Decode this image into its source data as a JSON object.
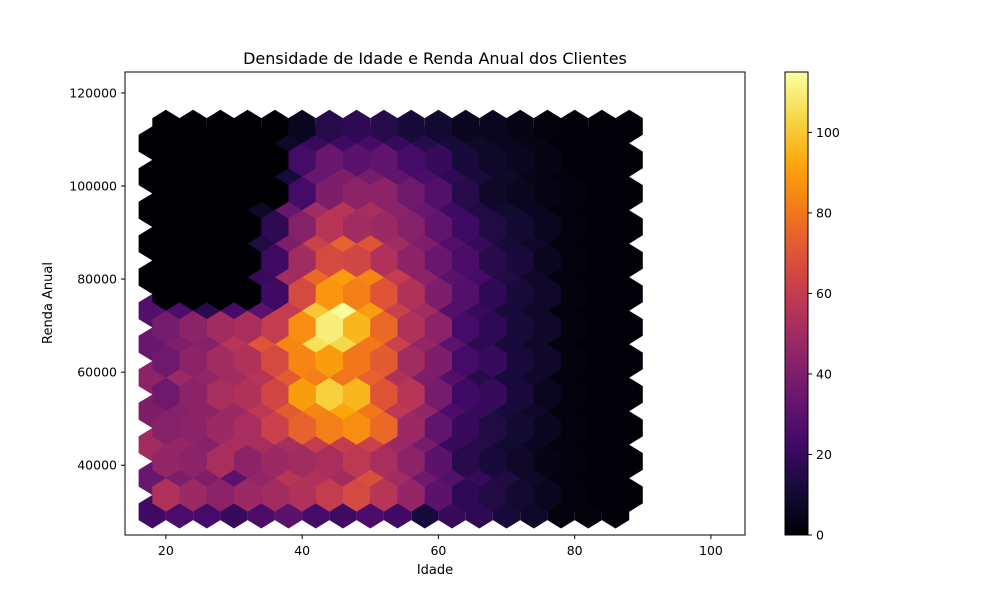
{
  "chart_data": {
    "type": "hexbin",
    "title": "Densidade de Idade e Renda Anual dos Clientes",
    "xlabel": "Idade",
    "ylabel": "Renda Anual",
    "xlim": [
      14,
      105
    ],
    "ylim": [
      25000,
      124500
    ],
    "x_ticks": [
      20,
      40,
      60,
      80,
      100
    ],
    "y_ticks": [
      40000,
      60000,
      80000,
      100000,
      120000
    ],
    "x_tick_labels": [
      "20",
      "40",
      "60",
      "80",
      "100"
    ],
    "y_tick_labels": [
      "40000",
      "60000",
      "80000",
      "100000",
      "120000"
    ],
    "colormap": "inferno",
    "color_range": [
      0,
      115
    ],
    "colorbar_ticks": [
      0,
      20,
      40,
      60,
      80,
      100
    ],
    "colorbar_tick_labels": [
      "0",
      "20",
      "40",
      "60",
      "80",
      "100"
    ],
    "grid": false,
    "bins": {
      "x_start": 18,
      "x_step": 4,
      "y_start": 30000,
      "y_step": 3600,
      "rows_even": [
        [
          22,
          26,
          24,
          20,
          26,
          30,
          24,
          22,
          26,
          22,
          12,
          20,
          18,
          12,
          8,
          2,
          2,
          1
        ],
        [
          34,
          40,
          40,
          30,
          46,
          56,
          54,
          50,
          68,
          50,
          36,
          28,
          20,
          14,
          8,
          2,
          1,
          1
        ],
        [
          50,
          46,
          42,
          52,
          52,
          52,
          60,
          60,
          62,
          48,
          38,
          20,
          16,
          10,
          6,
          2,
          1,
          1
        ],
        [
          40,
          42,
          44,
          48,
          58,
          72,
          84,
          92,
          80,
          58,
          46,
          26,
          20,
          12,
          8,
          2,
          1,
          1
        ],
        [
          44,
          48,
          46,
          50,
          56,
          72,
          82,
          80,
          74,
          54,
          40,
          28,
          16,
          12,
          8,
          2,
          1,
          1
        ],
        [
          34,
          40,
          42,
          56,
          70,
          84,
          106,
          104,
          80,
          62,
          46,
          30,
          18,
          12,
          8,
          2,
          1,
          1
        ],
        [
          28,
          26,
          16,
          24,
          30,
          60,
          100,
          114,
          90,
          62,
          50,
          28,
          20,
          12,
          8,
          2,
          1,
          1
        ],
        [
          0,
          0,
          0,
          0,
          20,
          50,
          76,
          90,
          84,
          60,
          44,
          30,
          24,
          14,
          8,
          2,
          1,
          1
        ],
        [
          0,
          0,
          0,
          0,
          14,
          40,
          62,
          74,
          70,
          50,
          40,
          28,
          20,
          12,
          8,
          2,
          1,
          1
        ],
        [
          0,
          0,
          0,
          0,
          8,
          34,
          50,
          56,
          52,
          44,
          34,
          22,
          14,
          10,
          6,
          2,
          1,
          1
        ],
        [
          0,
          0,
          0,
          0,
          0,
          12,
          34,
          40,
          38,
          32,
          26,
          18,
          12,
          8,
          4,
          2,
          1,
          1
        ],
        [
          0,
          0,
          0,
          0,
          0,
          8,
          20,
          22,
          24,
          20,
          16,
          12,
          8,
          6,
          4,
          1,
          1,
          1
        ]
      ],
      "rows_odd": [
        [
          54,
          48,
          44,
          48,
          50,
          54,
          60,
          66,
          56,
          46,
          30,
          18,
          14,
          10,
          6,
          2,
          1,
          1
        ],
        [
          46,
          44,
          52,
          44,
          48,
          50,
          52,
          58,
          52,
          44,
          30,
          16,
          12,
          8,
          4,
          2,
          1,
          1
        ],
        [
          42,
          44,
          48,
          52,
          62,
          74,
          82,
          86,
          76,
          48,
          32,
          20,
          14,
          10,
          6,
          2,
          1,
          1
        ],
        [
          36,
          44,
          52,
          54,
          64,
          90,
          102,
          96,
          70,
          56,
          38,
          22,
          20,
          12,
          6,
          2,
          1,
          1
        ],
        [
          36,
          44,
          50,
          54,
          66,
          84,
          90,
          80,
          72,
          50,
          40,
          24,
          20,
          12,
          8,
          2,
          1,
          1
        ],
        [
          38,
          44,
          50,
          52,
          60,
          86,
          110,
          96,
          76,
          54,
          44,
          24,
          18,
          12,
          8,
          2,
          1,
          1
        ],
        [
          0,
          0,
          0,
          0,
          22,
          66,
          88,
          82,
          70,
          54,
          40,
          28,
          18,
          12,
          8,
          2,
          1,
          1
        ],
        [
          0,
          0,
          0,
          0,
          22,
          50,
          66,
          64,
          54,
          44,
          34,
          26,
          16,
          12,
          6,
          2,
          1,
          1
        ],
        [
          0,
          0,
          0,
          0,
          18,
          42,
          56,
          50,
          48,
          42,
          32,
          22,
          14,
          10,
          6,
          2,
          1,
          1
        ],
        [
          0,
          0,
          0,
          0,
          0,
          24,
          40,
          44,
          44,
          36,
          28,
          16,
          8,
          6,
          4,
          2,
          1,
          1
        ],
        [
          0,
          0,
          0,
          0,
          0,
          24,
          34,
          30,
          32,
          24,
          20,
          12,
          8,
          6,
          4,
          1,
          1,
          1
        ],
        [
          0,
          0,
          0,
          0,
          0,
          6,
          16,
          18,
          16,
          12,
          10,
          6,
          6,
          4,
          2,
          1,
          1,
          1
        ]
      ]
    }
  }
}
